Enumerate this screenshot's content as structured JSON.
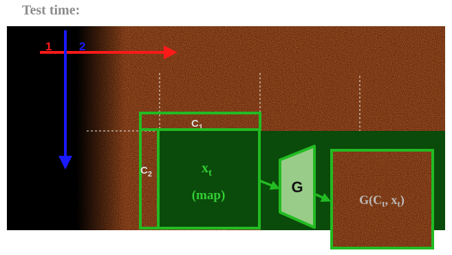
{
  "heading": "Test time:",
  "arrows": {
    "horizontal_label": "1",
    "vertical_label": "2",
    "horizontal_color": "#ff1a1a",
    "vertical_color": "#1a1aff"
  },
  "labels": {
    "c1_main": "C",
    "c1_sub": "1",
    "c2_main": "C",
    "c2_sub": "2",
    "xt_main": "x",
    "xt_sub": "t",
    "xt_caption": "(map)",
    "generator": "G",
    "output_prefix": "G(C",
    "output_sub1": "t",
    "output_mid": ", x",
    "output_sub2": "t",
    "output_suffix": ")"
  },
  "colors": {
    "texture": "#8a3512",
    "box_green": "#22bb22",
    "fill_green": "#0a4a0a",
    "text_green": "#33cc33",
    "generator_fill": "#99cc88",
    "label_white": "#dddddd",
    "output_label": "#bbbbbb"
  }
}
